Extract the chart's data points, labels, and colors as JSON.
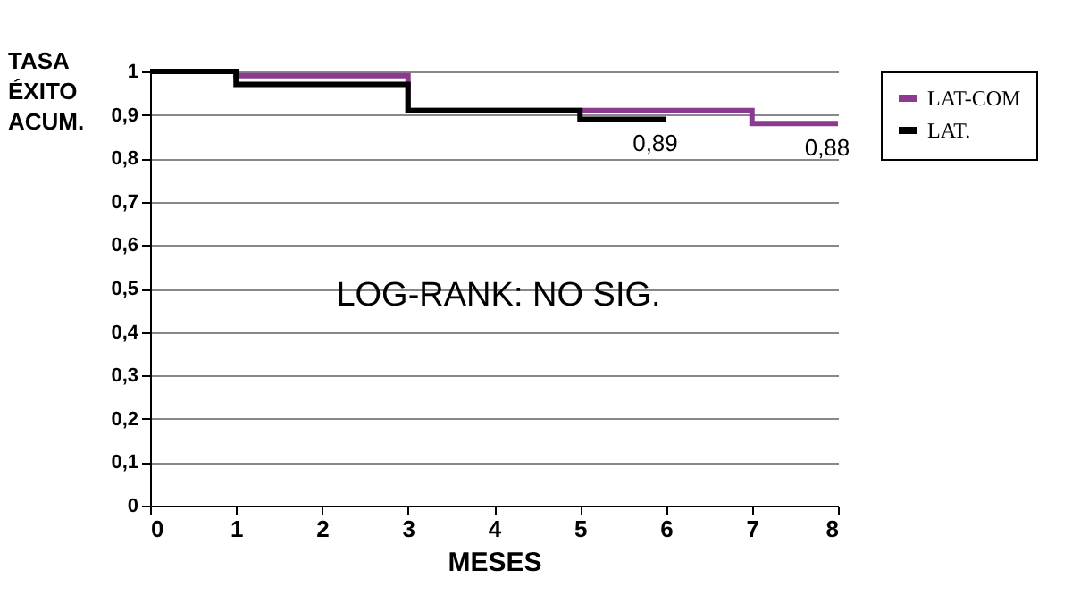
{
  "chart_data": {
    "type": "step",
    "ylabel": "TASA ÉXITO ACUM.",
    "xlabel": "MESES",
    "annotations": [
      "LOG-RANK: NO SIG.",
      {
        "text": "0,89",
        "x": 6,
        "y": 0.89
      },
      {
        "text": "0,88",
        "x": 8,
        "y": 0.88
      }
    ],
    "series": [
      {
        "name": "LAT-COM",
        "color": "#8b3a8f",
        "x": [
          0,
          1,
          3,
          7,
          8
        ],
        "values": [
          1,
          0.99,
          0.91,
          0.88,
          0.88
        ]
      },
      {
        "name": "LAT.",
        "color": "#000000",
        "x": [
          0,
          1,
          3,
          5,
          6
        ],
        "values": [
          1,
          0.97,
          0.91,
          0.89,
          0.89
        ]
      }
    ],
    "xlim": [
      0,
      8
    ],
    "xticks": [
      0,
      1,
      2,
      3,
      4,
      5,
      6,
      7,
      8
    ],
    "ylim": [
      0,
      1
    ],
    "yticks": [
      0,
      {
        "value": 0.1,
        "label": "0,1"
      },
      {
        "value": 0.2,
        "label": "0,2"
      },
      {
        "value": 0.3,
        "label": "0,3"
      },
      {
        "value": 0.4,
        "label": "0,4"
      },
      {
        "value": 0.5,
        "label": "0,5"
      },
      {
        "value": 0.6,
        "label": "0,6"
      },
      {
        "value": 0.7,
        "label": "0,7"
      },
      {
        "value": 0.8,
        "label": "0,8"
      },
      {
        "value": 0.9,
        "label": "0,9"
      },
      1
    ],
    "grid": "y",
    "legend": "right",
    "line_style": "solid",
    "marker": "none"
  }
}
